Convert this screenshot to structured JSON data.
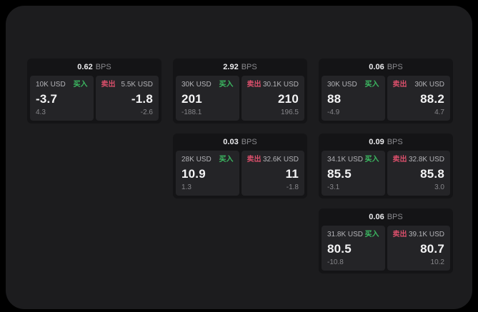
{
  "labels": {
    "bps_unit": "BPS",
    "buy": "买入",
    "sell": "卖出"
  },
  "colors": {
    "page_bg": "#000000",
    "container_bg": "#1c1c1e",
    "card_bg": "#141416",
    "panel_bg": "#242427",
    "buy": "#3cbb62",
    "sell": "#da4f6b",
    "value_text": "#f4f4f5",
    "muted_text": "#86868a"
  },
  "cards": [
    {
      "bps": "0.62",
      "grid": {
        "row": 1,
        "col": 1
      },
      "buy": {
        "amount": "10K USD",
        "value": "-3.7",
        "delta": "4.3"
      },
      "sell": {
        "amount": "5.5K USD",
        "value": "-1.8",
        "delta": "-2.6"
      }
    },
    {
      "bps": "2.92",
      "grid": {
        "row": 1,
        "col": 2
      },
      "buy": {
        "amount": "30K USD",
        "value": "201",
        "delta": "-188.1"
      },
      "sell": {
        "amount": "30.1K USD",
        "value": "210",
        "delta": "196.5"
      }
    },
    {
      "bps": "0.06",
      "grid": {
        "row": 1,
        "col": 3
      },
      "buy": {
        "amount": "30K USD",
        "value": "88",
        "delta": "-4.9"
      },
      "sell": {
        "amount": "30K USD",
        "value": "88.2",
        "delta": "4.7"
      }
    },
    {
      "bps": "0.03",
      "grid": {
        "row": 2,
        "col": 2
      },
      "buy": {
        "amount": "28K USD",
        "value": "10.9",
        "delta": "1.3"
      },
      "sell": {
        "amount": "32.6K USD",
        "value": "11",
        "delta": "-1.8"
      }
    },
    {
      "bps": "0.09",
      "grid": {
        "row": 2,
        "col": 3
      },
      "buy": {
        "amount": "34.1K USD",
        "value": "85.5",
        "delta": "-3.1"
      },
      "sell": {
        "amount": "32.8K USD",
        "value": "85.8",
        "delta": "3.0"
      }
    },
    {
      "bps": "0.06",
      "grid": {
        "row": 3,
        "col": 3
      },
      "buy": {
        "amount": "31.8K USD",
        "value": "80.5",
        "delta": "-10.8"
      },
      "sell": {
        "amount": "39.1K USD",
        "value": "80.7",
        "delta": "10.2"
      }
    }
  ]
}
